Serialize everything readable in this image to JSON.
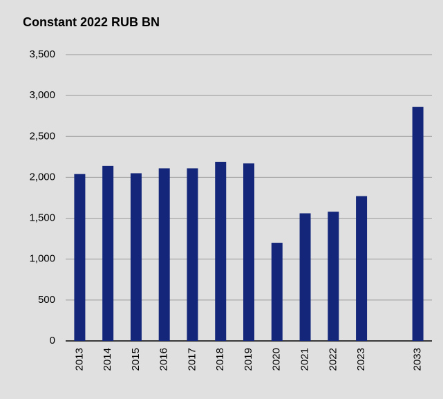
{
  "chart_data": {
    "type": "bar",
    "title": "Constant 2022 RUB BN",
    "categories": [
      "2013",
      "2014",
      "2015",
      "2016",
      "2017",
      "2018",
      "2019",
      "2020",
      "2021",
      "2022",
      "2023",
      null,
      "2033"
    ],
    "values": [
      2040,
      2140,
      2050,
      2110,
      2110,
      2190,
      2170,
      1200,
      1560,
      1580,
      1770,
      null,
      2860
    ],
    "color": "#13267a",
    "ylim": [
      0,
      3500
    ],
    "yticks": [
      0,
      500,
      {
        "value": 1000,
        "label": "1,000"
      },
      {
        "value": 1500,
        "label": "1,500"
      },
      {
        "value": 2000,
        "label": "2,000"
      },
      {
        "value": 2500,
        "label": "2,500"
      },
      {
        "value": 3000,
        "label": "3,000"
      },
      {
        "value": 3500,
        "label": "3,500"
      }
    ],
    "grid": true
  }
}
